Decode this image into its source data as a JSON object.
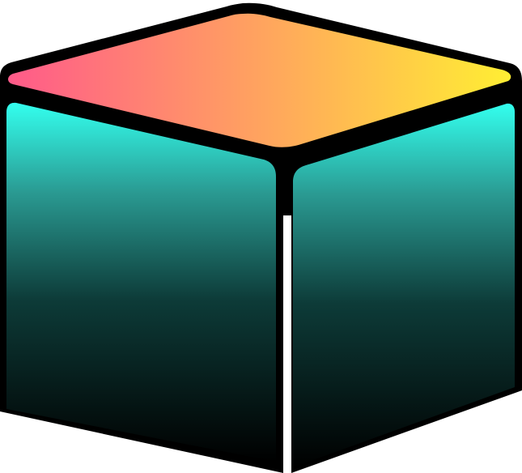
{
  "illustration": {
    "subject": "cube-icon",
    "colors": {
      "outline": "#000000",
      "background": "#ffffff",
      "top_gradient": [
        "#ff5a8a",
        "#ffa35f",
        "#ffee33"
      ],
      "side_gradient": [
        "#33ffee",
        "#2a9a92",
        "#0d3b38",
        "#000000"
      ]
    }
  }
}
